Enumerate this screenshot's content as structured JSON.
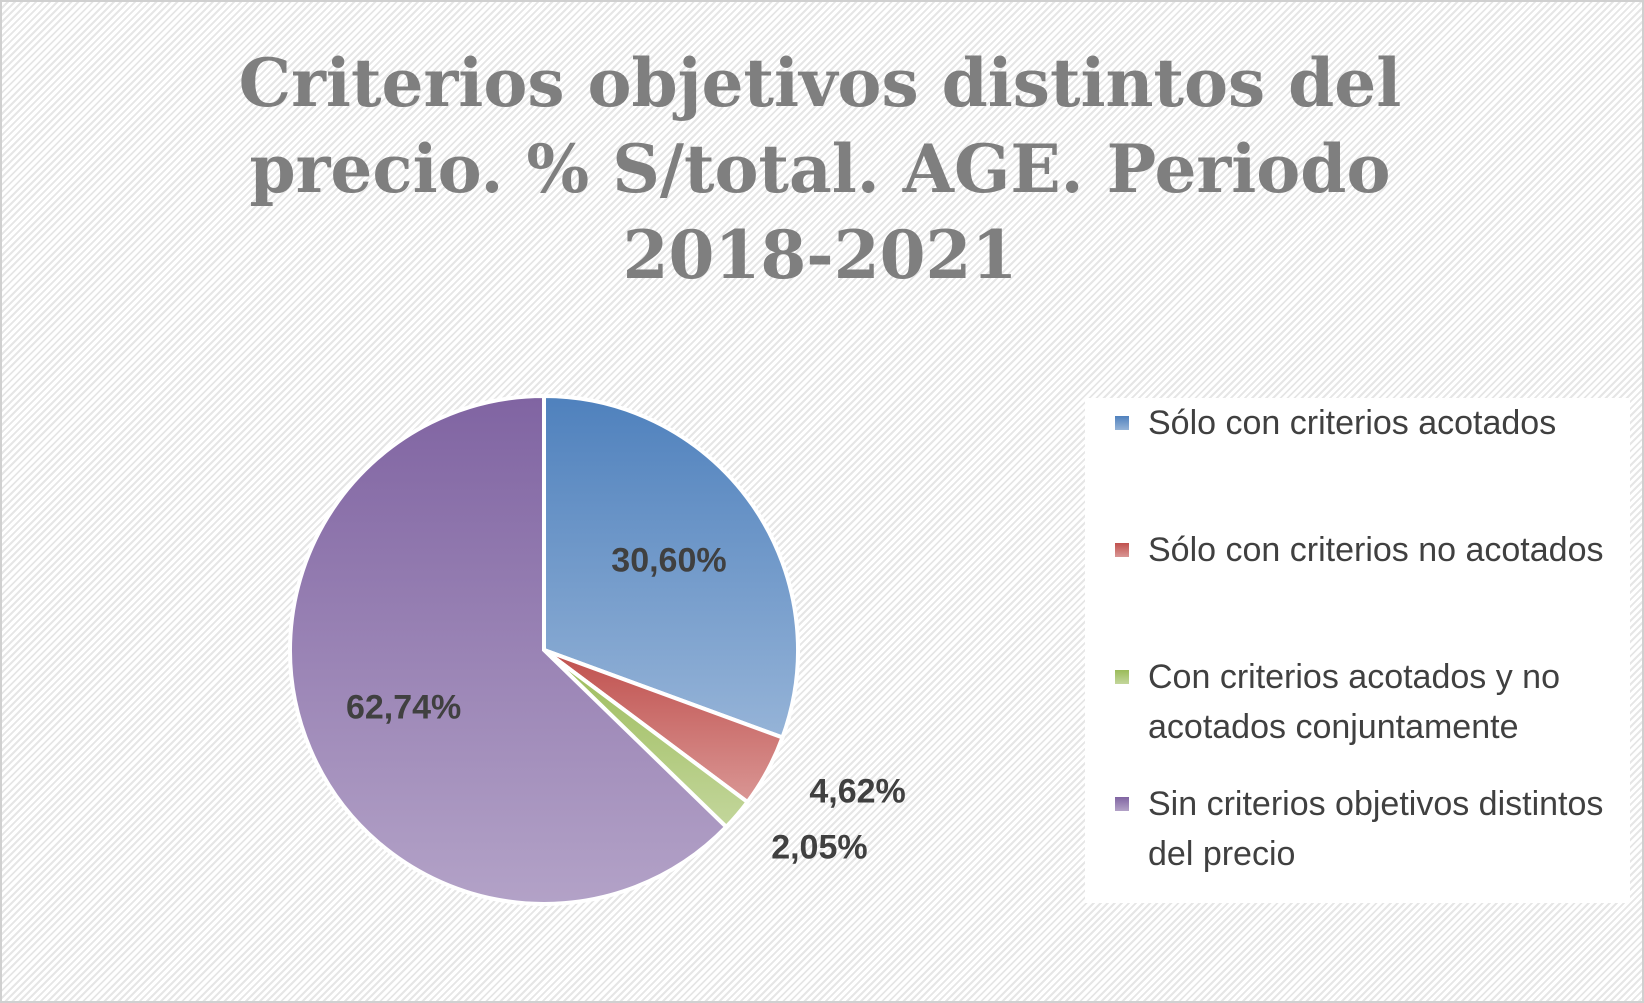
{
  "chart_data": {
    "type": "pie",
    "title": "Criterios objetivos distintos del precio. % S/total. AGE. Periodo 2018-2021",
    "categories": [
      "Sólo con criterios acotados",
      "Sólo con criterios no acotados",
      "Con criterios acotados y no acotados conjuntamente",
      "Sin criterios objetivos distintos del precio"
    ],
    "values": [
      30.6,
      4.62,
      2.05,
      62.74
    ],
    "value_labels": [
      "30,60%",
      "4,62%",
      "2,05%",
      "62,74%"
    ],
    "colors": [
      "#4f81bd",
      "#c0504d",
      "#9bbb59",
      "#8064a2"
    ],
    "legend": "right"
  }
}
